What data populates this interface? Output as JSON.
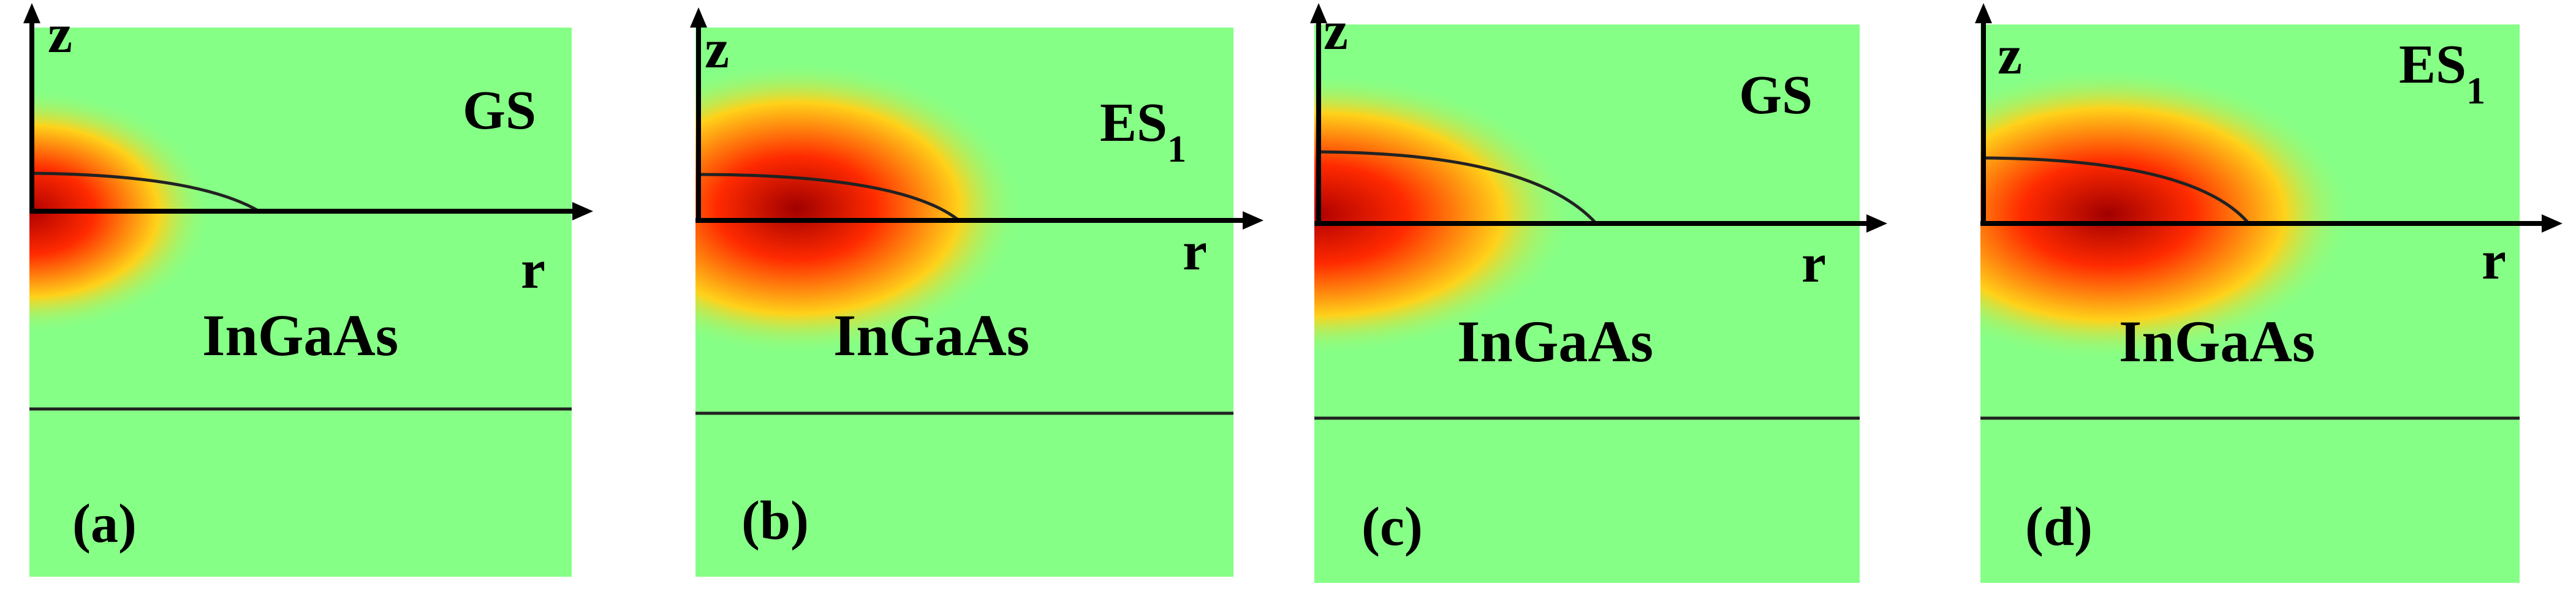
{
  "panels": [
    {
      "id": "a",
      "label": "(a)",
      "state_base": "GS",
      "state_sub": "",
      "material": "InGaAs",
      "z_label": "z",
      "r_label": "r"
    },
    {
      "id": "b",
      "label": "(b)",
      "state_base": "ES",
      "state_sub": "1",
      "material": "InGaAs",
      "z_label": "z",
      "r_label": "r"
    },
    {
      "id": "c",
      "label": "(c)",
      "state_base": "GS",
      "state_sub": "",
      "material": "InGaAs",
      "z_label": "z",
      "r_label": "r"
    },
    {
      "id": "d",
      "label": "(d)",
      "state_base": "ES",
      "state_sub": "1",
      "material": "InGaAs",
      "z_label": "z",
      "r_label": "r"
    }
  ],
  "colors": {
    "background": "#86ff86",
    "glow_center": "#b00000",
    "glow_mid": "#ff2a00",
    "glow_outer": "#ffd21a",
    "axis": "#000000",
    "outline": "#222222"
  }
}
